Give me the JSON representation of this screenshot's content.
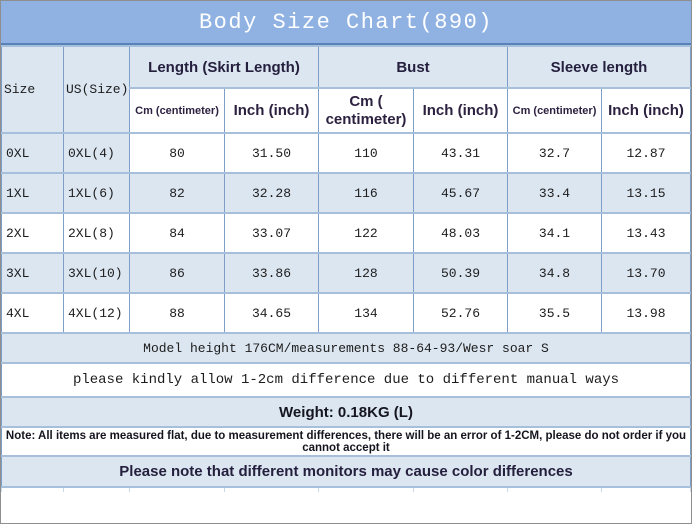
{
  "title": "Body Size Chart(890)",
  "colors": {
    "title_bg": "#8fb2e2",
    "title_text": "#ffffff",
    "row_alt_bg": "#dce6f1",
    "grid_vertical": "#7d9ec7",
    "grid_horizontal": "#a6c0dc",
    "header_text": "#2d2140"
  },
  "table": {
    "size_header": "Size",
    "us_header": "US(Size)",
    "groups": [
      {
        "label": "Length (Skirt Length)",
        "cm_label": "Cm (centimeter)",
        "inch_label": "Inch (inch)"
      },
      {
        "label": "Bust",
        "cm_label": "Cm (\ncentimeter)",
        "inch_label": "Inch (inch)"
      },
      {
        "label": "Sleeve length",
        "cm_label": "Cm (centimeter)",
        "inch_label": "Inch (inch)"
      }
    ],
    "column_keys": [
      "size",
      "us",
      "length_cm",
      "length_inch",
      "bust_cm",
      "bust_inch",
      "sleeve_cm",
      "sleeve_inch"
    ],
    "rows": [
      {
        "size": "0XL",
        "us": "0XL(4)",
        "length_cm": "80",
        "length_inch": "31.50",
        "bust_cm": "110",
        "bust_inch": "43.31",
        "sleeve_cm": "32.7",
        "sleeve_inch": "12.87"
      },
      {
        "size": "1XL",
        "us": "1XL(6)",
        "length_cm": "82",
        "length_inch": "32.28",
        "bust_cm": "116",
        "bust_inch": "45.67",
        "sleeve_cm": "33.4",
        "sleeve_inch": "13.15"
      },
      {
        "size": "2XL",
        "us": "2XL(8)",
        "length_cm": "84",
        "length_inch": "33.07",
        "bust_cm": "122",
        "bust_inch": "48.03",
        "sleeve_cm": "34.1",
        "sleeve_inch": "13.43"
      },
      {
        "size": "3XL",
        "us": "3XL(10)",
        "length_cm": "86",
        "length_inch": "33.86",
        "bust_cm": "128",
        "bust_inch": "50.39",
        "sleeve_cm": "34.8",
        "sleeve_inch": "13.70"
      },
      {
        "size": "4XL",
        "us": "4XL(12)",
        "length_cm": "88",
        "length_inch": "34.65",
        "bust_cm": "134",
        "bust_inch": "52.76",
        "sleeve_cm": "35.5",
        "sleeve_inch": "13.98"
      }
    ]
  },
  "notes": {
    "model_height": "Model height 176CM/measurements 88-64-93/Wesr soar S",
    "tolerance": "please kindly allow 1-2cm difference due to different manual ways",
    "weight": "Weight: 0.18KG (L)",
    "measure_error": "Note: All items are measured flat, due to measurement differences, there will be an error of 1-2CM, please do not order if you cannot accept it",
    "monitor": "Please note that different monitors may cause color differences"
  }
}
